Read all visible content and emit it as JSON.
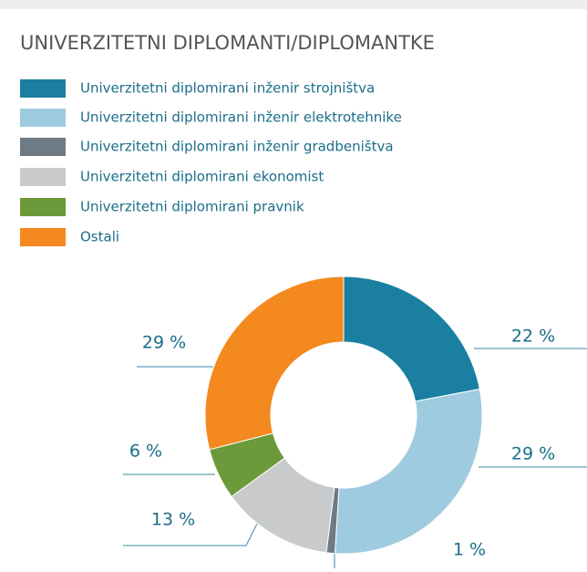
{
  "chart_data": {
    "type": "donut",
    "title": "UNIVERZITETNI DIPLOMANTI/DIPLOMANTKE",
    "categories": [
      "Univerzitetni diplomirani inženir strojništva",
      "Univerzitetni diplomirani inženir elektrotehnike",
      "Univerzitetni diplomirani inženir gradbeništva",
      "Univerzitetni diplomirani ekonomist",
      "Univerzitetni diplomirani pravnik",
      "Ostali"
    ],
    "values": [
      22,
      29,
      1,
      13,
      6,
      29
    ],
    "value_labels": [
      "22 %",
      "29 %",
      "1 %",
      "13 %",
      "6 %",
      "29 %"
    ],
    "colors": [
      "#1a7fa0",
      "#9fcbe0",
      "#6e7b85",
      "#c9cacc",
      "#6c9a3a",
      "#f4891f"
    ],
    "legend": "top-left"
  }
}
